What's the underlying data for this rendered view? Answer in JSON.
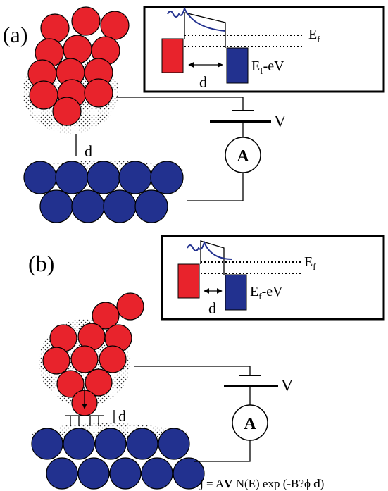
{
  "panel_a": {
    "label": "(a)",
    "inset": {
      "fermi": {
        "main": "E",
        "sub": "f"
      },
      "shifted": {
        "main": "E",
        "sub": "f",
        "rest": "-eV"
      },
      "gap": "d"
    },
    "gap": "d",
    "voltage": "V",
    "ammeter": "A"
  },
  "panel_b": {
    "label": "(b)",
    "inset": {
      "fermi": {
        "main": "E",
        "sub": "f"
      },
      "shifted": {
        "main": "E",
        "sub": "f",
        "rest": "-eV"
      },
      "gap": "d"
    },
    "gap": "d",
    "voltage": "V",
    "ammeter": "A"
  },
  "formula": {
    "lead": "j = A",
    "bold_v": "V",
    "mid": " N(E) exp (-B?",
    "phi": "ϕ",
    "bold_d": "d",
    "close": ")"
  }
}
